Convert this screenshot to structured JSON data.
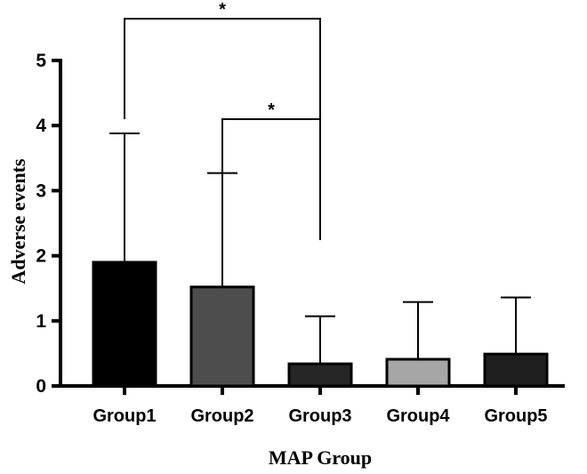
{
  "chart_data": {
    "type": "bar",
    "title": "",
    "xlabel": "MAP Group",
    "ylabel": "Adverse events",
    "ylim": [
      0,
      5
    ],
    "yticks": [
      0,
      1,
      2,
      3,
      4,
      5
    ],
    "categories": [
      "Group1",
      "Group2",
      "Group3",
      "Group4",
      "Group5"
    ],
    "values": [
      1.9,
      1.52,
      0.34,
      0.41,
      0.49
    ],
    "error_upper": [
      3.88,
      3.27,
      1.07,
      1.29,
      1.36
    ],
    "bar_colors": [
      "#000000",
      "#4d4d4d",
      "#262626",
      "#a6a6a6",
      "#1f1f1f"
    ],
    "significance": [
      {
        "from": "Group1",
        "to": "Group3",
        "label": "*"
      },
      {
        "from": "Group2",
        "to": "Group3",
        "label": "*"
      }
    ],
    "grid": false,
    "legend": "none"
  }
}
